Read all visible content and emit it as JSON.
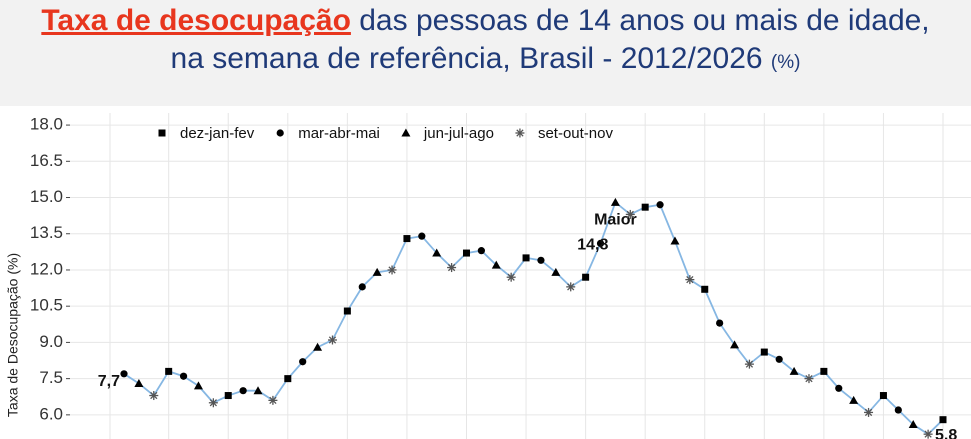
{
  "chart_data": {
    "type": "line",
    "title_highlight": "Taxa de desocupação",
    "title_rest": "das pessoas de 14 anos ou mais de idade,",
    "title_line2": "na semana de referência, Brasil - 2012/2026",
    "title_unit": "(%)",
    "y_label": "Taxa de Desocupação (%)",
    "annotation": "Maior",
    "line_color": "#86b7e3",
    "grid": true,
    "ylim": [
      5,
      18.5
    ],
    "yticks": [
      {
        "value": 6,
        "label": "6.0"
      },
      7.5,
      {
        "value": 9,
        "label": "9.0"
      },
      10.5,
      {
        "value": 12,
        "label": "12.0"
      },
      13.5,
      {
        "value": 15,
        "label": "15.0"
      },
      16.5,
      {
        "value": 18,
        "label": "18.0"
      }
    ],
    "categories": [
      null,
      null,
      null,
      null,
      null,
      null,
      null,
      null,
      null,
      null,
      null,
      null,
      null,
      null,
      null,
      null,
      null,
      null,
      null,
      null,
      null,
      null,
      null,
      null,
      null,
      null,
      null,
      null,
      null,
      null,
      null,
      null,
      null,
      null,
      null,
      null,
      null,
      null,
      null,
      null,
      null,
      null,
      null,
      null,
      null,
      null,
      null,
      null,
      null,
      null,
      null,
      null,
      null,
      null,
      null,
      null
    ],
    "series": [
      {
        "name": "dez-jan-fev",
        "marker": "square",
        "color": "#000000",
        "values": [
          null,
          null,
          null,
          7.8,
          null,
          null,
          null,
          6.8,
          null,
          null,
          null,
          7.5,
          null,
          null,
          null,
          10.3,
          null,
          null,
          null,
          13.3,
          null,
          null,
          null,
          12.7,
          null,
          null,
          null,
          12.5,
          null,
          null,
          null,
          11.7,
          null,
          null,
          null,
          14.6,
          null,
          null,
          null,
          11.2,
          null,
          null,
          null,
          8.6,
          null,
          null,
          null,
          7.8,
          null,
          null,
          null,
          6.8,
          null,
          null,
          null,
          5.8
        ],
        "value_labels": [
          null,
          null,
          null,
          null,
          null,
          null,
          null,
          null,
          null,
          null,
          null,
          null,
          null,
          null,
          null,
          null,
          null,
          null,
          null,
          null,
          null,
          null,
          null,
          null,
          null,
          null,
          null,
          null,
          null,
          null,
          null,
          null,
          null,
          null,
          null,
          null,
          null,
          null,
          null,
          null,
          null,
          null,
          null,
          null,
          null,
          null,
          null,
          null,
          null,
          null,
          null,
          null,
          null,
          null,
          null,
          "5,8"
        ]
      },
      {
        "name": "mar-abr-mai",
        "marker": "circle",
        "color": "#000000",
        "values": [
          7.7,
          null,
          null,
          null,
          7.6,
          null,
          null,
          null,
          7.0,
          null,
          null,
          null,
          8.2,
          null,
          null,
          null,
          11.3,
          null,
          null,
          null,
          13.4,
          null,
          null,
          null,
          12.8,
          null,
          null,
          null,
          12.4,
          null,
          null,
          null,
          13.1,
          null,
          null,
          null,
          14.7,
          null,
          null,
          null,
          9.8,
          null,
          null,
          null,
          8.3,
          null,
          null,
          null,
          7.1,
          null,
          null,
          null,
          6.2,
          null,
          null,
          null
        ],
        "value_labels": [
          "7,7",
          null,
          null,
          null,
          null,
          null,
          null,
          null,
          null,
          null,
          null,
          null,
          null,
          null,
          null,
          null,
          null,
          null,
          null,
          null,
          null,
          null,
          null,
          null,
          null,
          null,
          null,
          null,
          null,
          null,
          null,
          null,
          null,
          null,
          null,
          null,
          null,
          null,
          null,
          null,
          null,
          null,
          null,
          null,
          null,
          null,
          null,
          null,
          null,
          null,
          null,
          null,
          null,
          null,
          null,
          null
        ]
      },
      {
        "name": "jun-jul-ago",
        "marker": "triangle",
        "color": "#000000",
        "values": [
          null,
          7.3,
          null,
          null,
          null,
          7.2,
          null,
          null,
          null,
          7.0,
          null,
          null,
          null,
          8.8,
          null,
          null,
          null,
          11.9,
          null,
          null,
          null,
          12.7,
          null,
          null,
          null,
          12.2,
          null,
          null,
          null,
          11.9,
          null,
          null,
          null,
          14.8,
          null,
          null,
          null,
          13.2,
          null,
          null,
          null,
          8.9,
          null,
          null,
          null,
          7.8,
          null,
          null,
          null,
          6.6,
          null,
          null,
          null,
          5.6,
          null,
          null
        ],
        "value_labels": [
          null,
          null,
          null,
          null,
          null,
          null,
          null,
          null,
          null,
          null,
          null,
          null,
          null,
          null,
          null,
          null,
          null,
          null,
          null,
          null,
          null,
          null,
          null,
          null,
          null,
          null,
          null,
          null,
          null,
          null,
          null,
          null,
          null,
          "14,8",
          null,
          null,
          null,
          null,
          null,
          null,
          null,
          null,
          null,
          null,
          null,
          null,
          null,
          null,
          null,
          null,
          null,
          null,
          null,
          null,
          null,
          null
        ]
      },
      {
        "name": "set-out-nov",
        "marker": "asterisk",
        "color": "#555555",
        "values": [
          null,
          null,
          6.8,
          null,
          null,
          null,
          6.5,
          null,
          null,
          null,
          6.6,
          null,
          null,
          null,
          9.1,
          null,
          null,
          null,
          12.0,
          null,
          null,
          null,
          12.1,
          null,
          null,
          null,
          11.7,
          null,
          null,
          null,
          11.3,
          null,
          null,
          null,
          14.3,
          null,
          null,
          null,
          11.6,
          null,
          null,
          null,
          8.1,
          null,
          null,
          null,
          7.5,
          null,
          null,
          null,
          6.1,
          null,
          null,
          null,
          5.2,
          null
        ]
      }
    ]
  }
}
